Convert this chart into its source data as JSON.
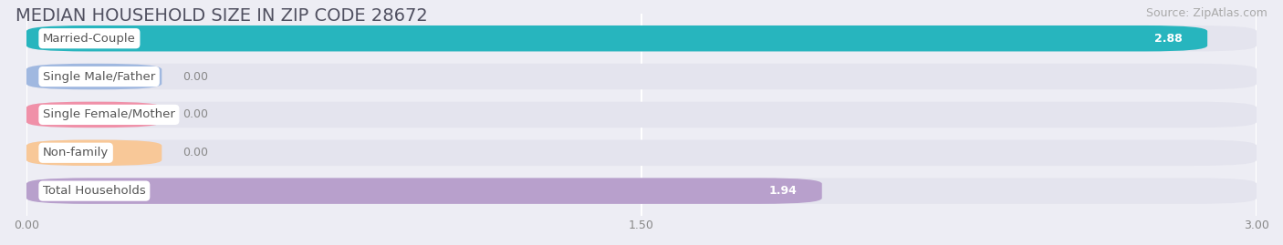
{
  "title": "MEDIAN HOUSEHOLD SIZE IN ZIP CODE 28672",
  "source": "Source: ZipAtlas.com",
  "categories": [
    "Married-Couple",
    "Single Male/Father",
    "Single Female/Mother",
    "Non-family",
    "Total Households"
  ],
  "values": [
    2.88,
    0.0,
    0.0,
    0.0,
    1.94
  ],
  "bar_colors": [
    "#27b5be",
    "#a0b8e0",
    "#f090a8",
    "#f8c898",
    "#b8a0cc"
  ],
  "bar_bg_color": "#e4e4ee",
  "xlim_max": 3.0,
  "xticks": [
    0.0,
    1.5,
    3.0
  ],
  "xtick_labels": [
    "0.00",
    "1.50",
    "3.00"
  ],
  "title_fontsize": 14,
  "source_fontsize": 9,
  "label_fontsize": 9.5,
  "value_fontsize": 9,
  "grid_color": "#ffffff",
  "background_color": "#ededf4",
  "label_bg": "#ffffff",
  "label_text_color": "#555555",
  "value_inside_color": "#ffffff",
  "value_outside_color": "#888888"
}
